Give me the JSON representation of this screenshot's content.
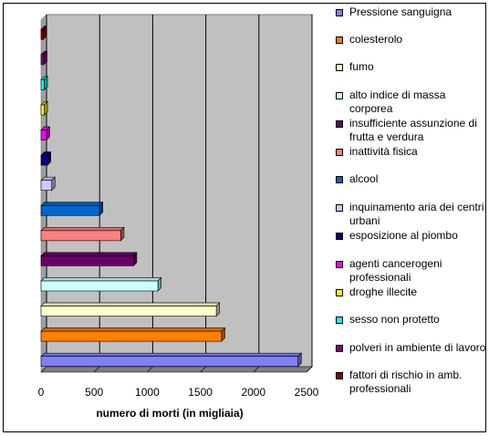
{
  "chart_data": {
    "type": "bar",
    "orientation": "horizontal",
    "style": "3d",
    "xlabel": "numero di morti (in migliaia)",
    "xlim": [
      0,
      2500
    ],
    "xticks": [
      0,
      500,
      1000,
      1500,
      2000,
      2500
    ],
    "grid": true,
    "legend_position": "right",
    "categories": [
      "Pressione sanguigna",
      "colesterolo",
      "fumo",
      "alto indice di massa corporea",
      "insufficiente assunzione di frutta e verdura",
      "inattività fisica",
      "alcool",
      "inquinamento aria dei centri urbani",
      "esposizione al piombo",
      "agenti cancerogeni professionali",
      "droghe illecite",
      "sesso non protetto",
      "polveri in ambiente di lavoro",
      "fattori di rischio in amb. professionali"
    ],
    "values": [
      2420,
      1700,
      1650,
      1100,
      870,
      750,
      550,
      100,
      60,
      50,
      30,
      30,
      25,
      20
    ],
    "colors": [
      "#8080FF",
      "#FF8000",
      "#FFFFCC",
      "#CCFFFF",
      "#660066",
      "#FF8080",
      "#0066CC",
      "#CCCCFF",
      "#000080",
      "#FF00FF",
      "#FFFF00",
      "#00FFFF",
      "#800080",
      "#800000"
    ]
  },
  "legend_items": [
    "Pressione sanguigna",
    "colesterolo",
    "fumo",
    "alto indice di massa corporea",
    "insufficiente assunzione di frutta e verdura",
    "inattività fisica",
    "alcool",
    "inquinamento aria dei centri urbani",
    "esposizione al piombo",
    "agenti cancerogeni professionali",
    "droghe illecite",
    "sesso non protetto",
    "polveri in ambiente di lavoro",
    "fattori di rischio in amb. professionali"
  ]
}
